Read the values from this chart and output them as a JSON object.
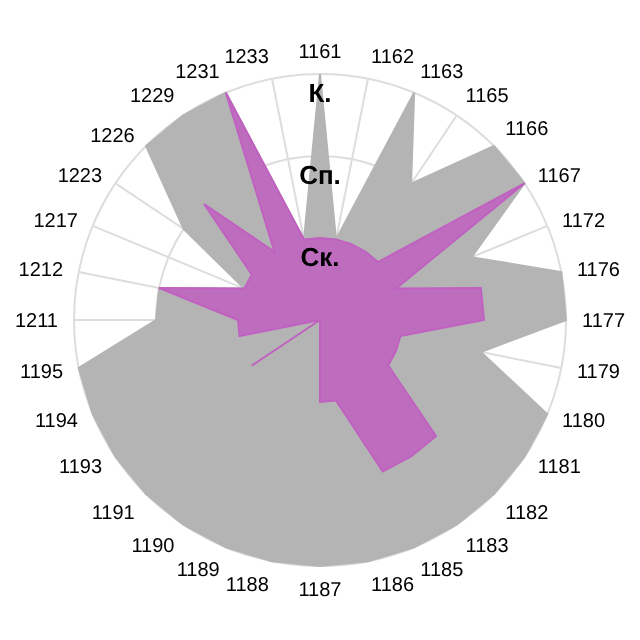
{
  "chart_data": {
    "type": "radar",
    "categories": [
      "1161",
      "1162",
      "1163",
      "1165",
      "1166",
      "1167",
      "1172",
      "1176",
      "1177",
      "1179",
      "1180",
      "1181",
      "1182",
      "1183",
      "1185",
      "1186",
      "1187",
      "1188",
      "1189",
      "1190",
      "1191",
      "1193",
      "1194",
      "1195",
      "1211",
      "1212",
      "1217",
      "1223",
      "1226",
      "1229",
      "1231",
      "1233"
    ],
    "series": [
      {
        "color": "#b4b4b4",
        "values": [
          3,
          1,
          3,
          2,
          3,
          3,
          2,
          3,
          3,
          2,
          3,
          3,
          3,
          3,
          3,
          3,
          3,
          3,
          3,
          3,
          3,
          3,
          3,
          3,
          2,
          2,
          1,
          2,
          3,
          3,
          3,
          1
        ]
      },
      {
        "color": "#c060c0",
        "values": [
          1,
          1,
          1,
          1,
          1,
          3,
          1,
          2,
          2,
          1,
          1,
          1,
          2,
          2,
          2,
          1,
          1,
          0,
          0,
          0,
          0,
          1,
          0,
          1,
          1,
          2,
          1,
          1,
          2,
          1,
          3,
          1
        ]
      }
    ],
    "ylim": [
      0,
      3
    ],
    "yticks": [
      {
        "value": 1,
        "label": "Ск."
      },
      {
        "value": 2,
        "label": "Сп."
      },
      {
        "value": 3,
        "label": "К."
      }
    ],
    "grid": true
  }
}
